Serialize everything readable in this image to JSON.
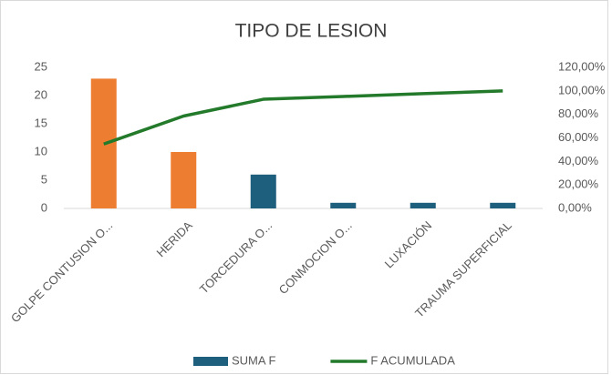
{
  "chart_data": {
    "type": "bar-line",
    "title": "TIPO DE LESION",
    "categories": [
      "GOLPE CONTUSION O...",
      "HERIDA",
      "TORCEDURA O...",
      "CONMOCION O...",
      "LUXACIÓN",
      "TRAUMA SUPERFICIAL"
    ],
    "series": [
      {
        "name": "SUMA F",
        "type": "bar",
        "color": "#1f5f7e",
        "colors": [
          "#ed7d31",
          "#ed7d31",
          "#1f5f7e",
          "#1f5f7e",
          "#1f5f7e",
          "#1f5f7e"
        ],
        "values": [
          23,
          10,
          6,
          1,
          1,
          1
        ]
      },
      {
        "name": "F ACUMULADA",
        "type": "line",
        "axis": "y2",
        "color": "#237a2b",
        "values": [
          54.76,
          78.57,
          92.86,
          95.24,
          97.62,
          100
        ]
      }
    ],
    "ylim": [
      0,
      25
    ],
    "yticks": [
      0,
      5,
      10,
      15,
      20,
      25
    ],
    "y2lim": [
      0,
      120
    ],
    "y2ticks": [
      {
        "value": 0,
        "label": "0,00%"
      },
      {
        "value": 20,
        "label": "20,00%"
      },
      {
        "value": 40,
        "label": "40,00%"
      },
      {
        "value": 60,
        "label": "60,00%"
      },
      {
        "value": 80,
        "label": "80,00%"
      },
      {
        "value": 100,
        "label": "100,00%"
      },
      {
        "value": 120,
        "label": "120,00%"
      }
    ],
    "grid": false,
    "legend": "bottom"
  }
}
